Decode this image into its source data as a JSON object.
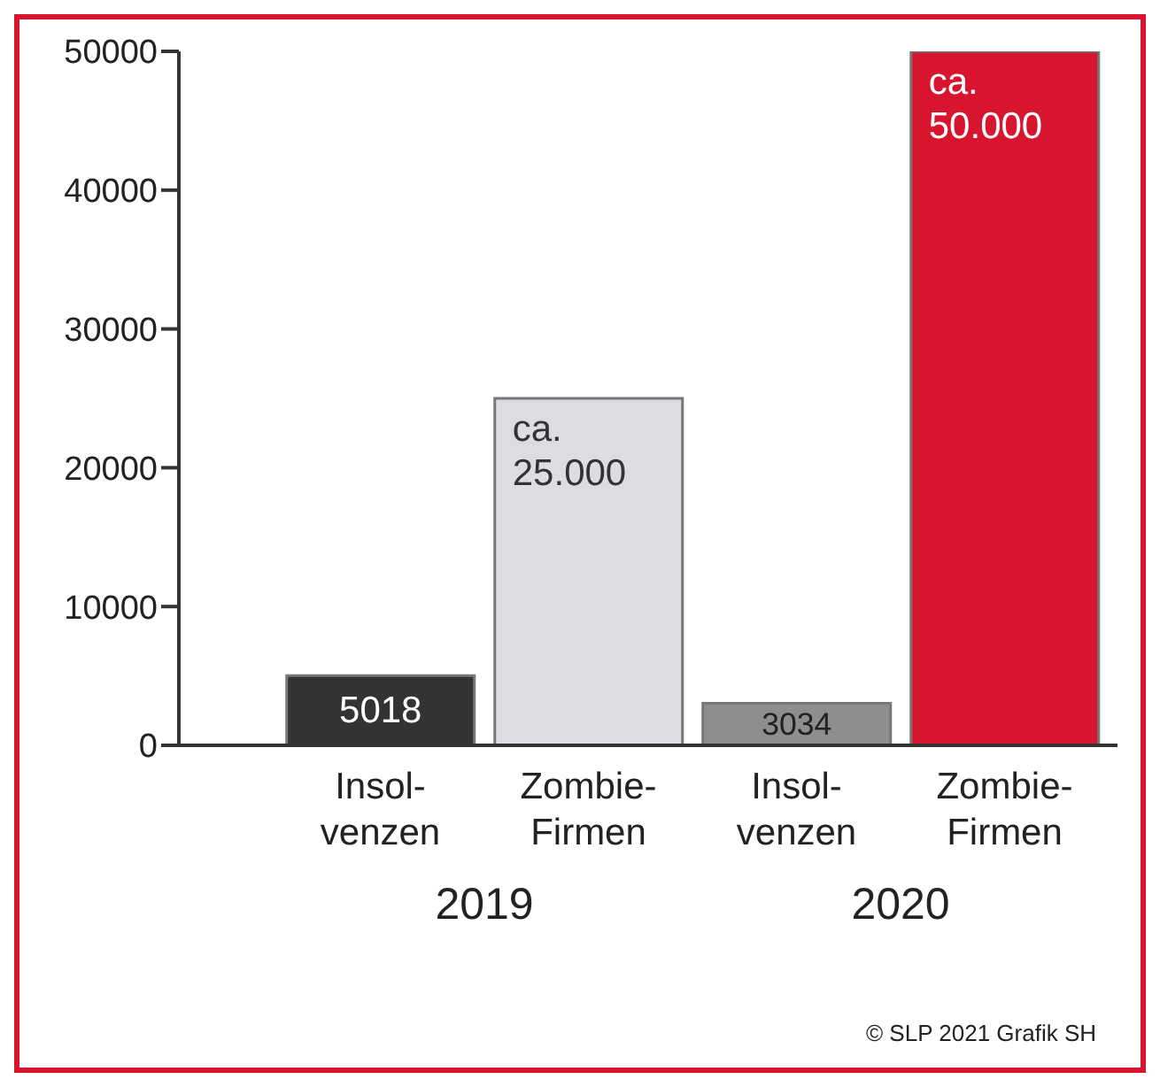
{
  "chart_data": {
    "type": "bar",
    "categories": [
      "Insol-venzen",
      "Zombie-Firmen",
      "Insol-venzen",
      "Zombie-Firmen"
    ],
    "values": [
      5018,
      25000,
      3034,
      50000
    ],
    "colors": [
      "#333333",
      "#dcdde0",
      "#8e8e8e",
      "#d7152f"
    ],
    "value_labels": [
      "5018",
      "ca. 25.000",
      "3034",
      "ca. 50.000"
    ],
    "ylim": [
      0,
      50000
    ],
    "yticks": [
      0,
      10000,
      20000,
      30000,
      40000,
      50000
    ],
    "annotations": [
      "2019",
      "2020",
      "© SLP 2021   Grafik SH"
    ]
  }
}
